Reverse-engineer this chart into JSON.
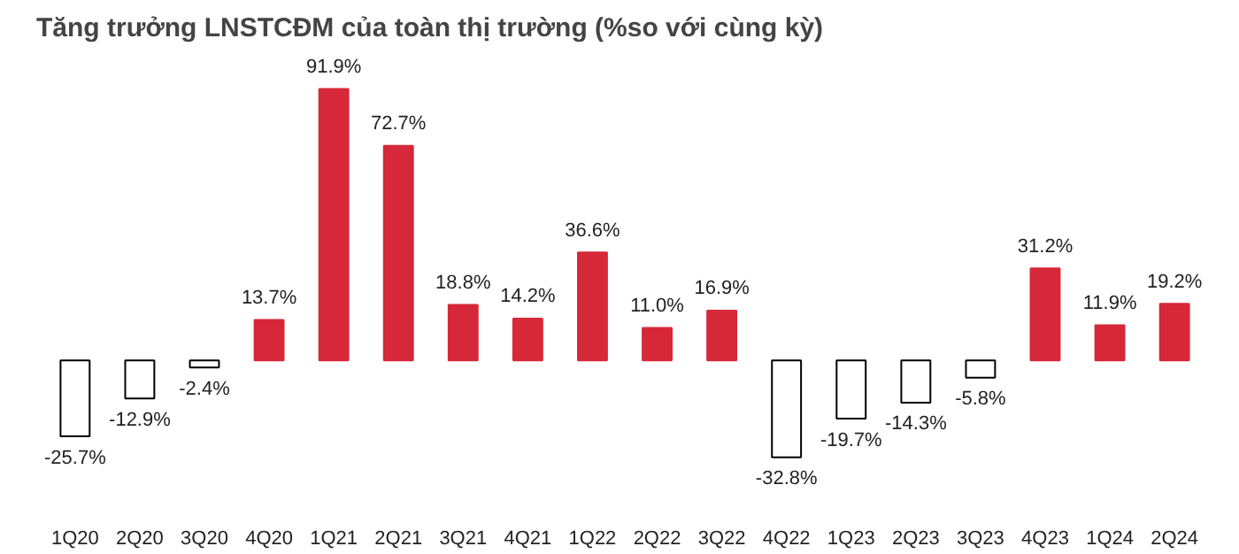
{
  "chart_data": {
    "type": "bar",
    "title": "Tăng trưởng LNSTCĐM của toàn thị trường (%so với cùng kỳ)",
    "categories": [
      "1Q20",
      "2Q20",
      "3Q20",
      "4Q20",
      "1Q21",
      "2Q21",
      "3Q21",
      "4Q21",
      "1Q22",
      "2Q22",
      "3Q22",
      "4Q22",
      "1Q23",
      "2Q23",
      "3Q23",
      "4Q23",
      "1Q24",
      "2Q24"
    ],
    "values": [
      -25.7,
      -12.9,
      -2.4,
      13.7,
      91.9,
      72.7,
      18.8,
      14.2,
      36.6,
      11.0,
      16.9,
      -32.8,
      -19.7,
      -14.3,
      -5.8,
      31.2,
      11.9,
      19.2
    ],
    "value_labels": [
      "-25.7%",
      "-12.9%",
      "-2.4%",
      "13.7%",
      "91.9%",
      "72.7%",
      "18.8%",
      "14.2%",
      "36.6%",
      "11.0%",
      "16.9%",
      "-32.8%",
      "-19.7%",
      "-14.3%",
      "-5.8%",
      "31.2%",
      "11.9%",
      "19.2%"
    ],
    "colors": [
      "#ffffff",
      "#ffffff",
      "#ffffff",
      "#d62839",
      "#d62839",
      "#d62839",
      "#d62839",
      "#d62839",
      "#d62839",
      "#d62839",
      "#d62839",
      "#ffffff",
      "#ffffff",
      "#ffffff",
      "#ffffff",
      "#d62839",
      "#d62839",
      "#d62839"
    ],
    "grid": false
  }
}
